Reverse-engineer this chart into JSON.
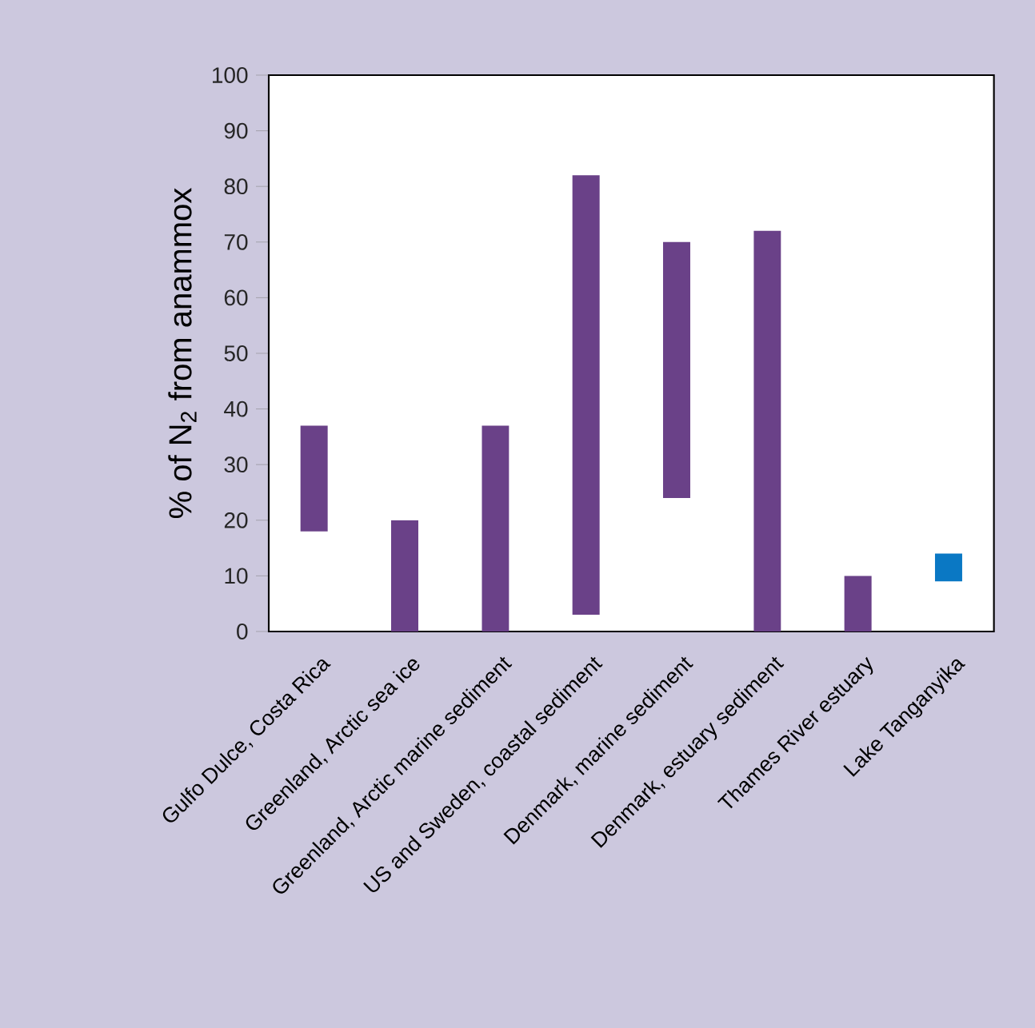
{
  "chart_data": {
    "type": "bar",
    "ylabel": "% of N$_{2}$ from anammox",
    "categories": [
      "Gulfo Dulce, Costa Rica",
      "Greenland, Arctic sea ice",
      "Greenland, Arctic marine sediment",
      "US and Sweden, coastal sediment",
      "Denmark, marine sediment",
      "Denmark, estuary sediment",
      "Thames River estuary",
      "Lake Tanganyika"
    ],
    "base": [
      18,
      0,
      0,
      3,
      24,
      0,
      0,
      9
    ],
    "values": [
      19,
      20,
      37,
      79,
      46,
      72,
      10,
      5
    ],
    "colors": [
      "#6a4188",
      "#6a4188",
      "#6a4188",
      "#6a4188",
      "#6a4188",
      "#6a4188",
      "#6a4188",
      "#0a78c4"
    ],
    "ylim": [
      0,
      100
    ],
    "yticks": [
      0,
      10,
      20,
      30,
      40,
      50,
      60,
      70,
      80,
      90,
      100
    ]
  }
}
